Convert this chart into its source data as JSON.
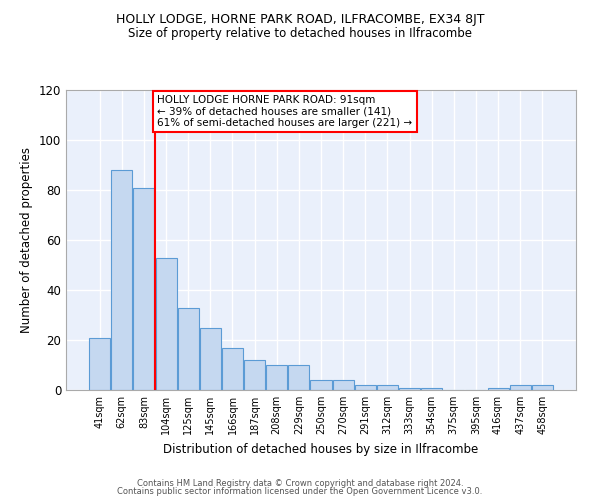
{
  "title1": "HOLLY LODGE, HORNE PARK ROAD, ILFRACOMBE, EX34 8JT",
  "title2": "Size of property relative to detached houses in Ilfracombe",
  "xlabel": "Distribution of detached houses by size in Ilfracombe",
  "ylabel": "Number of detached properties",
  "categories": [
    "41sqm",
    "62sqm",
    "83sqm",
    "104sqm",
    "125sqm",
    "145sqm",
    "166sqm",
    "187sqm",
    "208sqm",
    "229sqm",
    "250sqm",
    "270sqm",
    "291sqm",
    "312sqm",
    "333sqm",
    "354sqm",
    "375sqm",
    "395sqm",
    "416sqm",
    "437sqm",
    "458sqm"
  ],
  "values": [
    21,
    88,
    81,
    53,
    33,
    25,
    17,
    12,
    10,
    10,
    4,
    4,
    2,
    2,
    1,
    1,
    0,
    0,
    1,
    2,
    2
  ],
  "bar_color": "#c5d8f0",
  "bar_edge_color": "#5b9bd5",
  "vline_color": "red",
  "annotation_text": "HOLLY LODGE HORNE PARK ROAD: 91sqm\n← 39% of detached houses are smaller (141)\n61% of semi-detached houses are larger (221) →",
  "annotation_box_color": "white",
  "annotation_box_edge": "red",
  "ylim": [
    0,
    120
  ],
  "yticks": [
    0,
    20,
    40,
    60,
    80,
    100,
    120
  ],
  "footer1": "Contains HM Land Registry data © Crown copyright and database right 2024.",
  "footer2": "Contains public sector information licensed under the Open Government Licence v3.0.",
  "plot_bg_color": "#eaf0fb"
}
